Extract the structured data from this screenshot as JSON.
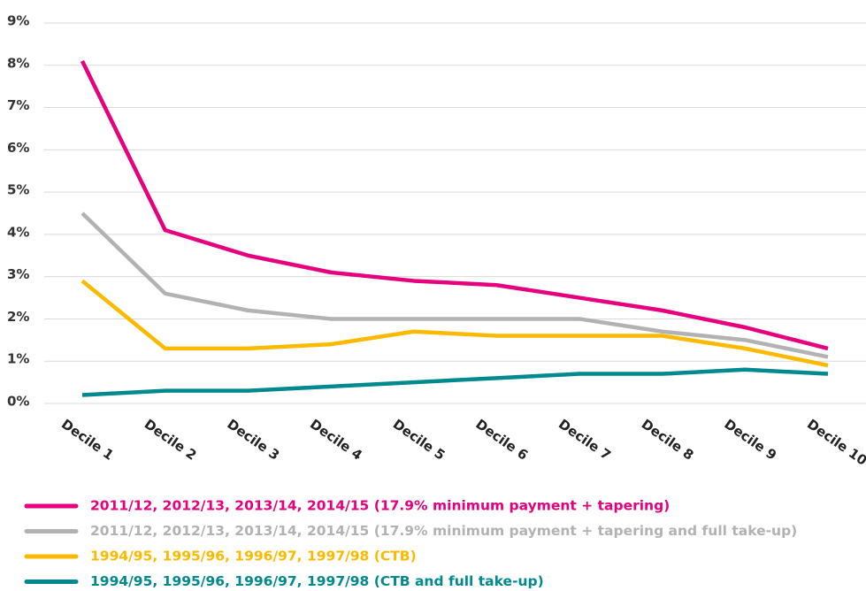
{
  "chart_data": {
    "type": "line",
    "categories": [
      "Decile 1",
      "Decile 2",
      "Decile 3",
      "Decile 4",
      "Decile 5",
      "Decile 6",
      "Decile 7",
      "Decile 8",
      "Decile 9",
      "Decile 10"
    ],
    "series": [
      {
        "name": "2011/12, 2012/13, 2013/14, 2014/15 (17.9% minimum payment + tapering)",
        "color": "#e6007e",
        "values": [
          8.1,
          4.1,
          3.5,
          3.1,
          2.9,
          2.8,
          2.5,
          2.2,
          1.8,
          1.3
        ]
      },
      {
        "name": "2011/12, 2012/13, 2013/14, 2014/15 (17.9% minimum payment + tapering and full take-up)",
        "color": "#b2b2b2",
        "values": [
          4.5,
          2.6,
          2.2,
          2.0,
          2.0,
          2.0,
          2.0,
          1.7,
          1.5,
          1.1
        ]
      },
      {
        "name": "1994/95, 1995/96, 1996/97, 1997/98 (CTB)",
        "color": "#fbba00",
        "values": [
          2.9,
          1.3,
          1.3,
          1.4,
          1.7,
          1.6,
          1.6,
          1.6,
          1.3,
          0.9
        ]
      },
      {
        "name": "1994/95, 1995/96, 1996/97, 1997/98 (CTB and full take-up)",
        "color": "#00898e",
        "values": [
          0.2,
          0.3,
          0.3,
          0.4,
          0.5,
          0.6,
          0.7,
          0.7,
          0.8,
          0.7
        ]
      }
    ],
    "ylim": [
      0,
      9
    ],
    "yticks": [
      {
        "value": 0,
        "label": "0%"
      },
      {
        "value": 1,
        "label": "1%"
      },
      {
        "value": 2,
        "label": "2%"
      },
      {
        "value": 3,
        "label": "3%"
      },
      {
        "value": 4,
        "label": "4%"
      },
      {
        "value": 5,
        "label": "5%"
      },
      {
        "value": 6,
        "label": "6%"
      },
      {
        "value": 7,
        "label": "7%"
      },
      {
        "value": 8,
        "label": "8%"
      },
      {
        "value": 9,
        "label": "9%"
      }
    ],
    "grid": true
  }
}
